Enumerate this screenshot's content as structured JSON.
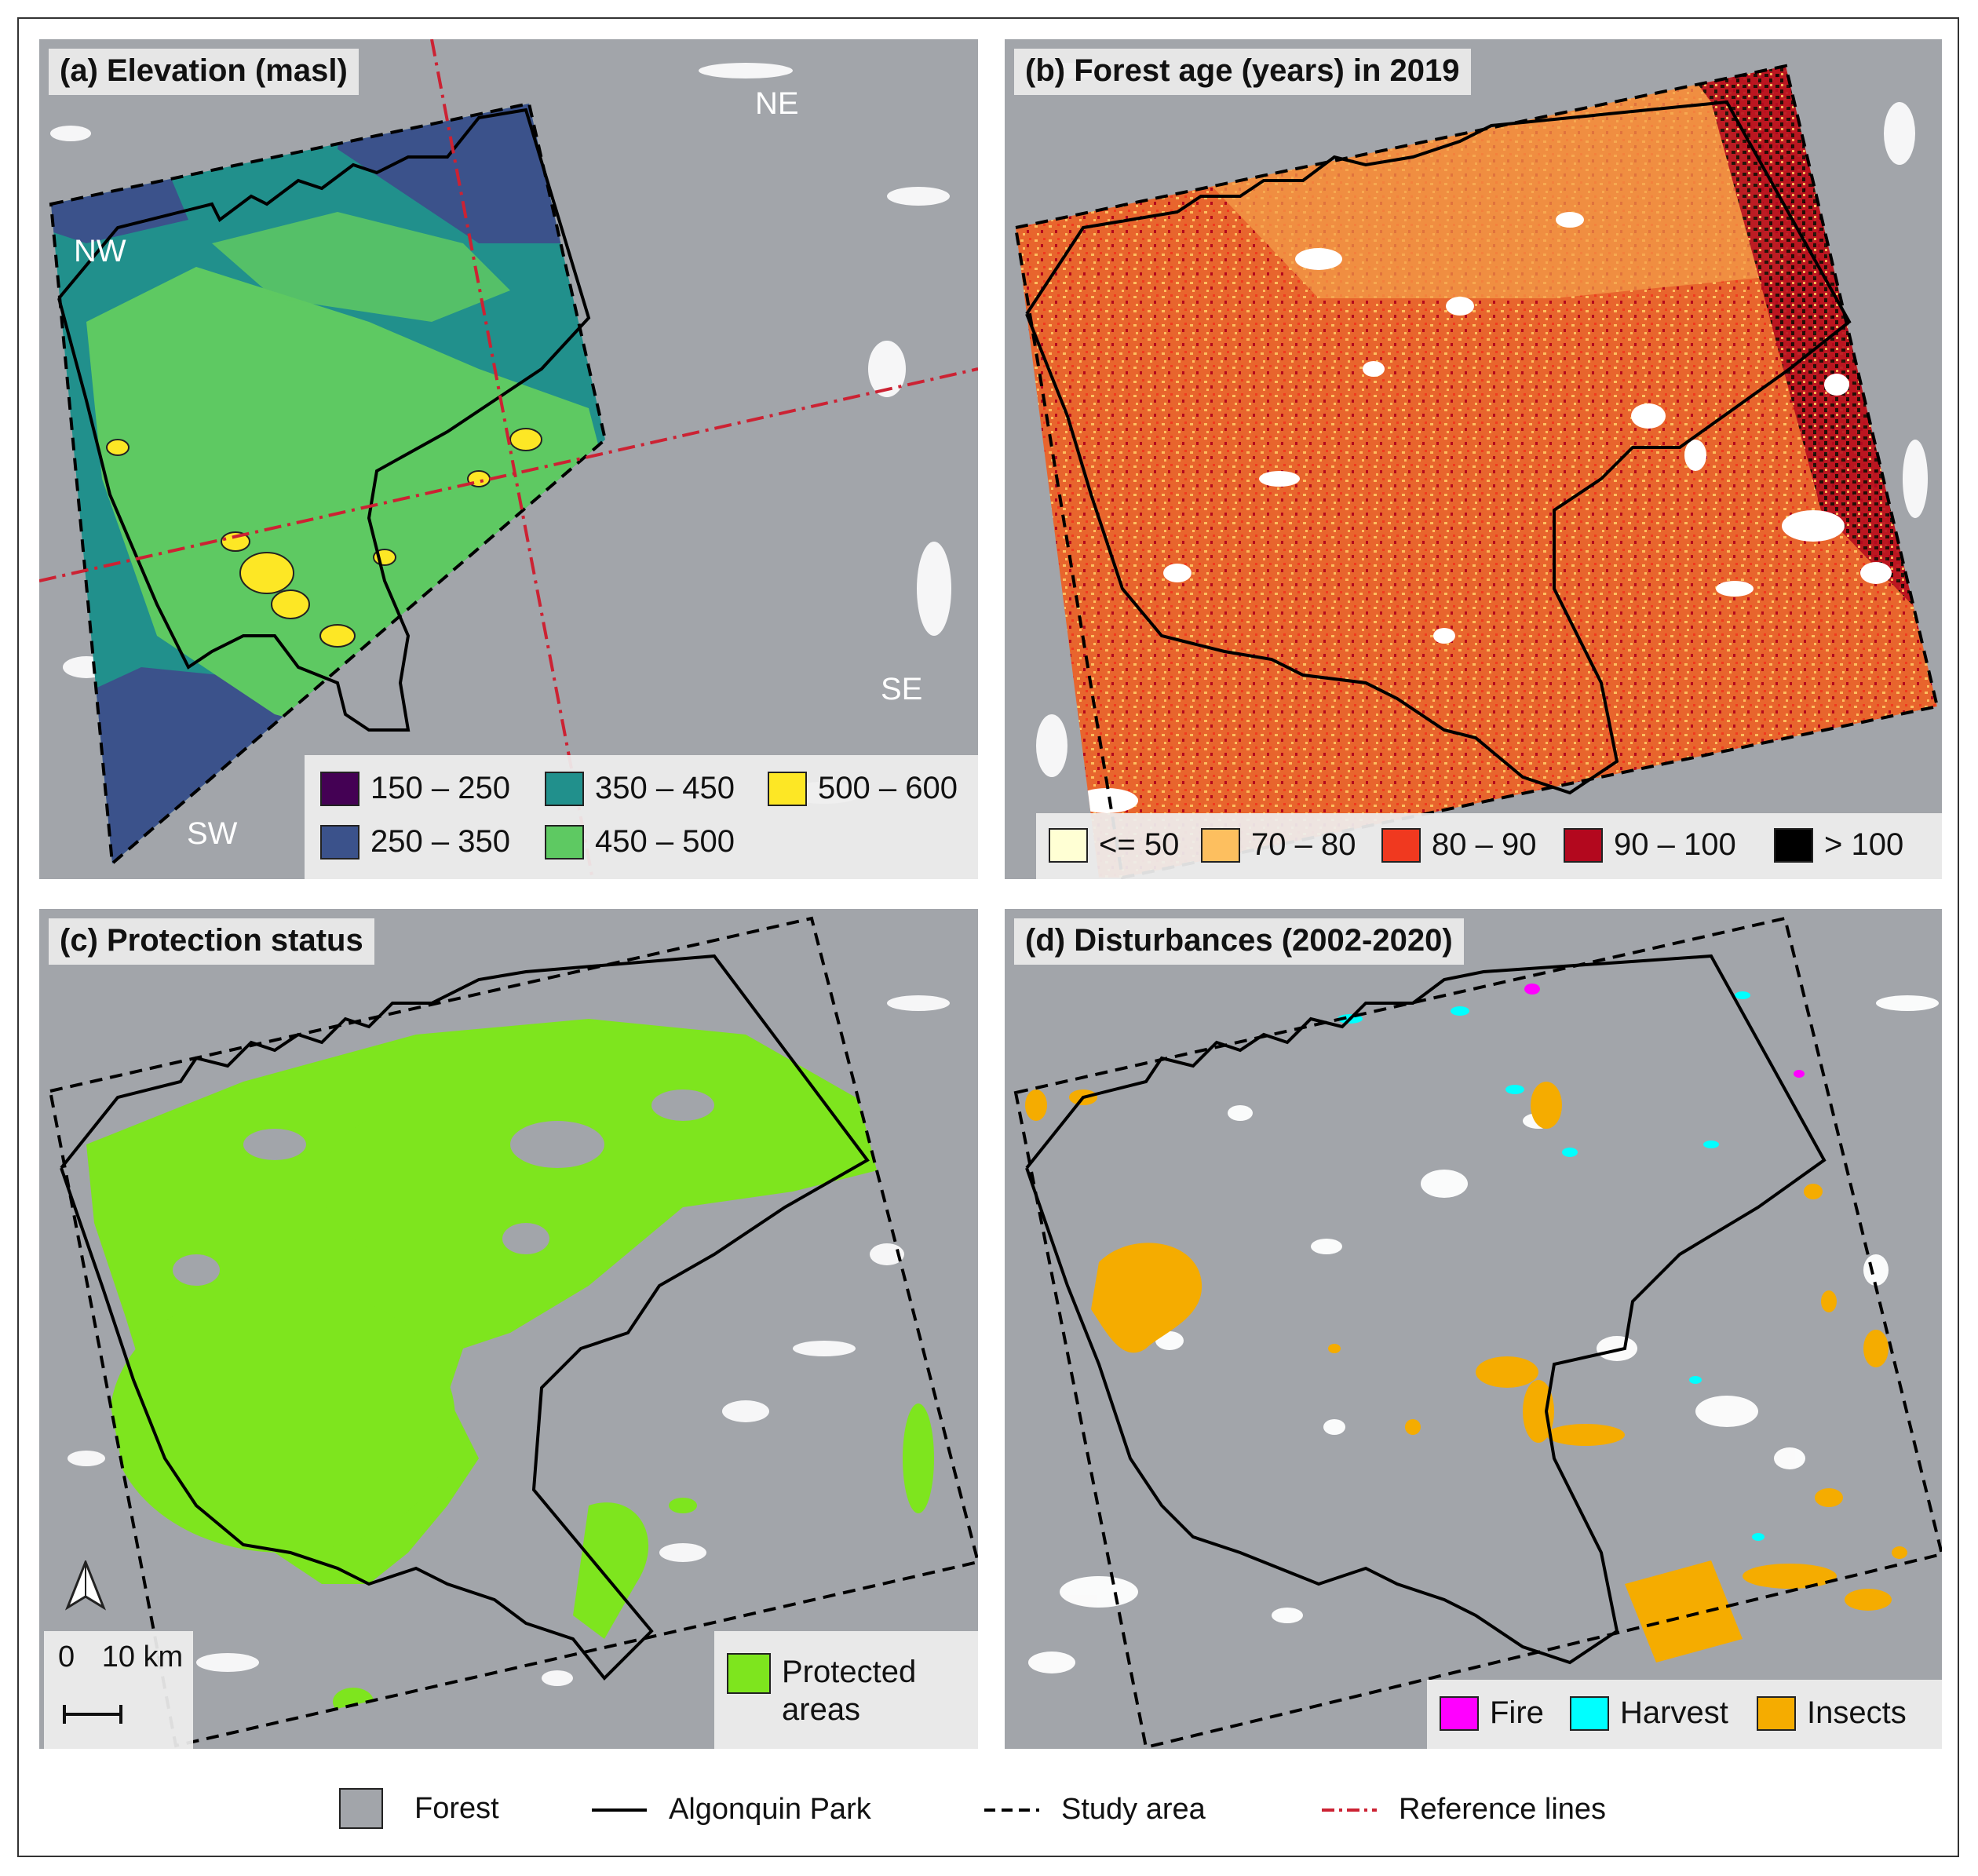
{
  "panels": {
    "a": {
      "title": "(a) Elevation (masl)",
      "directions": {
        "nw": "NW",
        "ne": "NE",
        "se": "SE",
        "sw": "SW"
      },
      "legend": [
        {
          "label": "150 – 250",
          "color": "#440154"
        },
        {
          "label": "250 – 350",
          "color": "#3b528b"
        },
        {
          "label": "350 – 450",
          "color": "#21908c"
        },
        {
          "label": "450 – 500",
          "color": "#5ec962"
        },
        {
          "label": "500 – 600",
          "color": "#fde725"
        }
      ]
    },
    "b": {
      "title": "(b) Forest age (years) in 2019",
      "legend": [
        {
          "label": "<= 50",
          "color": "#ffffd4"
        },
        {
          "label": "70 – 80",
          "color": "#fdbf5f"
        },
        {
          "label": "80 – 90",
          "color": "#f0391f"
        },
        {
          "label": "90 – 100",
          "color": "#b3081e"
        },
        {
          "label": "> 100",
          "color": "#000000"
        }
      ]
    },
    "c": {
      "title": "(c) Protection status",
      "legend": [
        {
          "label_line1": "Protected",
          "label_line2": "areas",
          "color": "#7ee51e"
        }
      ],
      "scalebar": {
        "zero": "0",
        "distance": "10 km"
      }
    },
    "d": {
      "title": "(d) Disturbances (2002-2020)",
      "legend": [
        {
          "label": "Fire",
          "color": "#ff00ff"
        },
        {
          "label": "Harvest",
          "color": "#00ffff"
        },
        {
          "label": "Insects",
          "color": "#f5ac00"
        }
      ]
    }
  },
  "shared_legend": [
    {
      "label": "Forest",
      "symbol": "box",
      "color": "#a2a5aa"
    },
    {
      "label": "Algonquin Park",
      "symbol": "solid-line",
      "color": "#000000"
    },
    {
      "label": "Study area",
      "symbol": "dashed-line",
      "color": "#000000"
    },
    {
      "label": "Reference lines",
      "symbol": "dash-dot-line",
      "color": "#cc2233"
    }
  ],
  "colors": {
    "forest_background": "#a2a5aa",
    "water": "#ffffff",
    "park_boundary": "#000000",
    "reference_line": "#cc2233"
  }
}
